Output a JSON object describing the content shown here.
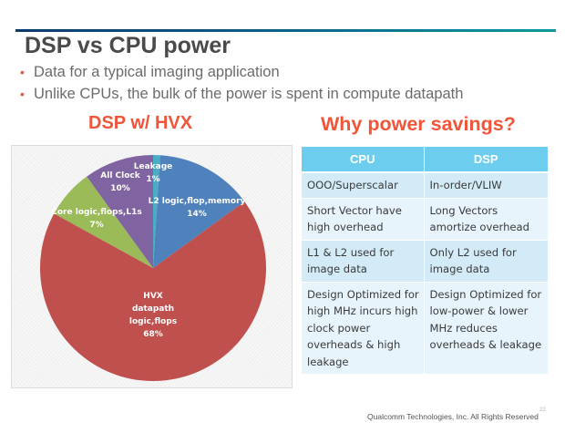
{
  "slide": {
    "title": "DSP vs CPU power",
    "bullets": [
      "Data for a typical imaging application",
      "Unlike CPUs, the bulk of the power is spent in compute datapath"
    ],
    "bullet_icon": "bullet-dot",
    "accent_color": "#f0553a",
    "header_rule_colors": [
      "#0b3a6d",
      "#0a9a9e"
    ],
    "footer": "Qualcomm Technologies, Inc. All Rights Reserved",
    "page_number": "22"
  },
  "left_panel": {
    "heading": "DSP w/ HVX"
  },
  "right_panel": {
    "heading": "Why power savings?",
    "table": {
      "headers": [
        "CPU",
        "DSP"
      ],
      "rows": [
        [
          "OOO/Superscalar",
          "In-order/VLIW"
        ],
        [
          "Short Vector have high overhead",
          "Long Vectors amortize overhead"
        ],
        [
          "L1 & L2 used for image data",
          "Only L2 used for image data"
        ],
        [
          "Design Optimized for high MHz incurs high clock power overheads & high leakage",
          "Design Optimized for low-power & lower MHz reduces overheads & leakage"
        ]
      ],
      "header_color": "#6ccdee",
      "row_colors": [
        "#d3ebf7",
        "#e8f4fb"
      ]
    }
  },
  "chart_data": {
    "type": "pie",
    "title": "DSP w/ HVX",
    "start_angle_deg": 0,
    "direction": "clockwise",
    "categories": [
      "Leakage",
      "L2 logic,flop,memory",
      "HVX datapath logic,flops",
      "Core logic,flops,L1s",
      "All Clock"
    ],
    "values": [
      1,
      14,
      68,
      7,
      10
    ],
    "unit": "%",
    "data_labels": [
      "Leakage 1%",
      "L2 logic,flop,memory 14%",
      "HVX datapath logic,flops 68%",
      "Core logic,flops,L1s 7%",
      "All Clock 10%"
    ],
    "colors": [
      "#4bacc6",
      "#4f81bd",
      "#c0504d",
      "#9bbb59",
      "#8064a2"
    ],
    "legend": "none",
    "labels": {
      "leakage": {
        "name": "Leakage",
        "pct": "1%"
      },
      "l2": {
        "name": "L2 logic,flop,memory",
        "pct": "14%"
      },
      "hvx": {
        "line1": "HVX",
        "line2": "datapath",
        "line3": "logic,flops",
        "pct": "68%"
      },
      "core": {
        "name": "Core logic,flops,L1s",
        "pct": "7%"
      },
      "clock": {
        "name": "All Clock",
        "pct": "10%"
      }
    }
  }
}
